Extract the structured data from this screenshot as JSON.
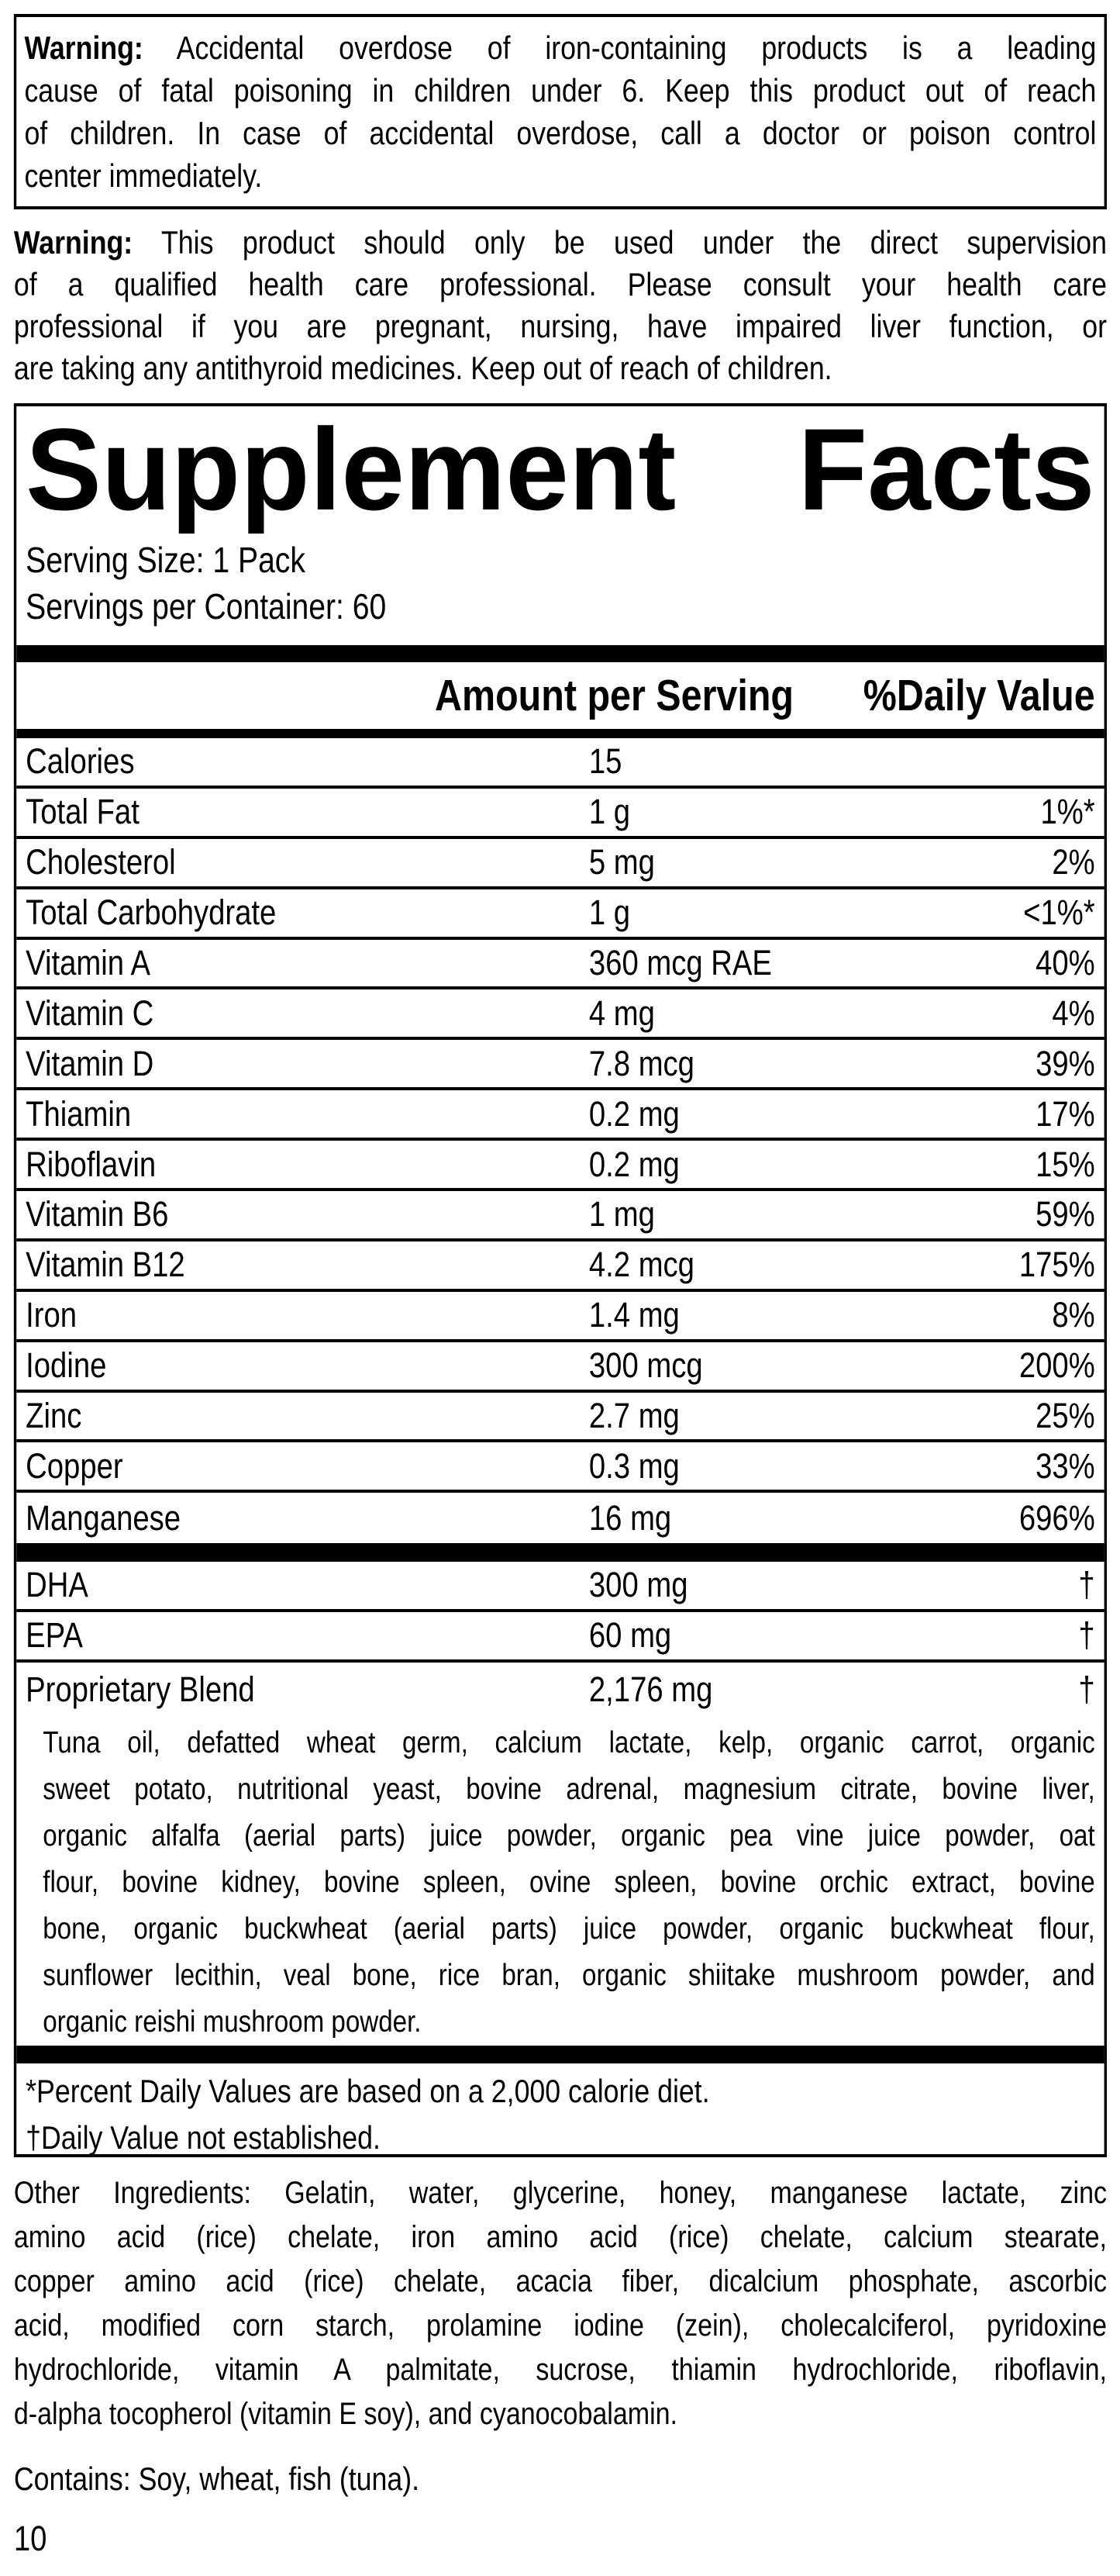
{
  "warning_box": {
    "label": "Warning:",
    "lines": [
      "Accidental overdose of iron-containing products is a leading",
      "cause of fatal poisoning in children under 6. Keep this product out of reach",
      "of children. In case of accidental overdose, call a doctor or poison control",
      "center immediately."
    ]
  },
  "warning_supervision": {
    "label": "Warning:",
    "lines": [
      "This product should only be used under the direct supervision",
      "of a qualified health care professional. Please consult your health care",
      "professional if you are pregnant, nursing, have impaired liver function, or",
      "are taking any antithyroid medicines. Keep out of reach of children."
    ]
  },
  "panel": {
    "title_word1": "Supplement",
    "title_word2": "Facts",
    "serving_size": "Serving Size: 1 Pack",
    "servings_per_container": "Servings per Container: 60",
    "col_amount": "Amount per Serving",
    "col_dv": "%Daily Value",
    "rows": [
      {
        "name": "Calories",
        "amount": "15",
        "dv": ""
      },
      {
        "name": "Total Fat",
        "amount": "1 g",
        "dv": "1%*"
      },
      {
        "name": "Cholesterol",
        "amount": "5 mg",
        "dv": "2%"
      },
      {
        "name": "Total Carbohydrate",
        "amount": "1 g",
        "dv": "<1%*"
      },
      {
        "name": "Vitamin A",
        "amount": "360 mcg RAE",
        "dv": "40%"
      },
      {
        "name": "Vitamin C",
        "amount": "4 mg",
        "dv": "4%"
      },
      {
        "name": "Vitamin D",
        "amount": "7.8 mcg",
        "dv": "39%"
      },
      {
        "name": "Thiamin",
        "amount": "0.2 mg",
        "dv": "17%"
      },
      {
        "name": "Riboflavin",
        "amount": "0.2 mg",
        "dv": "15%"
      },
      {
        "name": "Vitamin B6",
        "amount": "1 mg",
        "dv": "59%"
      },
      {
        "name": "Vitamin B12",
        "amount": "4.2 mcg",
        "dv": "175%"
      },
      {
        "name": "Iron",
        "amount": "1.4 mg",
        "dv": "8%"
      },
      {
        "name": "Iodine",
        "amount": "300 mcg",
        "dv": "200%"
      },
      {
        "name": "Zinc",
        "amount": "2.7 mg",
        "dv": "25%"
      },
      {
        "name": "Copper",
        "amount": "0.3 mg",
        "dv": "33%"
      },
      {
        "name": "Manganese",
        "amount": "16 mg",
        "dv": "696%"
      }
    ],
    "rows2": [
      {
        "name": "DHA",
        "amount": "300 mg",
        "dv": "†"
      },
      {
        "name": "EPA",
        "amount": "60 mg",
        "dv": "†"
      },
      {
        "name": "Proprietary Blend",
        "amount": "2,176 mg",
        "dv": "†"
      }
    ],
    "blend_lines": [
      "Tuna oil, defatted wheat germ, calcium lactate, kelp, organic carrot, organic",
      "sweet potato, nutritional yeast, bovine adrenal, magnesium citrate, bovine liver,",
      "organic alfalfa (aerial parts) juice powder, organic pea vine juice powder, oat",
      "flour, bovine kidney, bovine spleen, ovine spleen, bovine orchic extract, bovine",
      "bone, organic buckwheat (aerial parts) juice powder, organic buckwheat flour,",
      "sunflower lecithin, veal bone, rice bran, organic shiitake mushroom powder, and",
      "organic reishi mushroom powder."
    ],
    "footnote_percent": "*Percent Daily Values are based on a 2,000 calorie diet.",
    "footnote_dagger": "†Daily Value not established."
  },
  "other_ingredients_lines": [
    "Other Ingredients: Gelatin, water, glycerine, honey, manganese lactate, zinc",
    "amino acid (rice) chelate, iron amino acid (rice) chelate, calcium stearate,",
    "copper amino acid (rice) chelate, acacia fiber, dicalcium phosphate, ascorbic",
    "acid, modified corn starch, prolamine iodine (zein), cholecalciferol, pyridoxine",
    "hydrochloride, vitamin A palmitate, sucrose, thiamin hydrochloride, riboflavin,",
    "d-alpha tocopherol (vitamin E soy), and cyanocobalamin."
  ],
  "contains_statement": "Contains: Soy, wheat, fish (tuna).",
  "page_number": "10",
  "colors": {
    "ink": "#000000",
    "paper": "#ffffff"
  }
}
